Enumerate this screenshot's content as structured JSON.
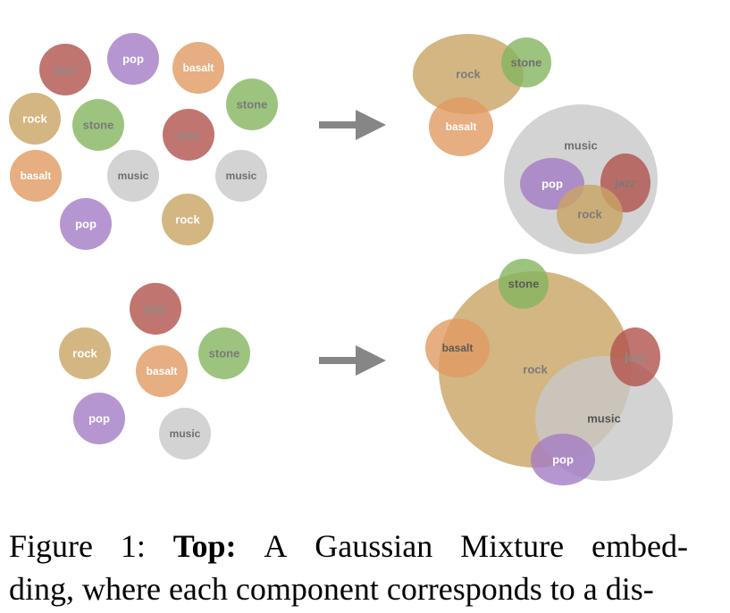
{
  "colors": {
    "jazz": "#b2534c",
    "pop": "#a47cc4",
    "basalt": "#e09a62",
    "stone": "#83b55e",
    "rock": "#c9a464",
    "music": "#c8c8c8",
    "arrow": "#868686"
  },
  "labels": {
    "jazz": "jazz",
    "pop": "pop",
    "basalt": "basalt",
    "stone": "stone",
    "rock": "rock",
    "music": "music"
  },
  "caption": {
    "line1_w1": "Figure",
    "line1_w2": "1:",
    "line1_bold": "Top:",
    "line1_w3": "A",
    "line1_w4": "Gaussian",
    "line1_w5": "Mixture",
    "line1_w6": "embed-",
    "line2": "ding, where each component corresponds to a dis-"
  }
}
